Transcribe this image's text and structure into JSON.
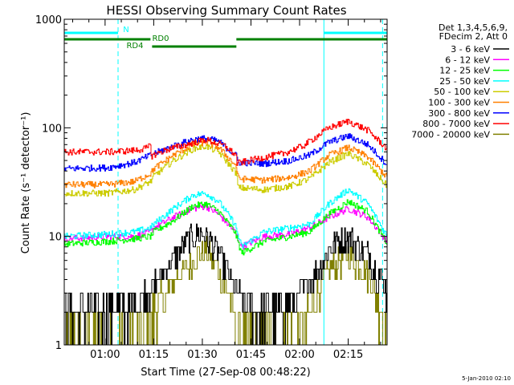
{
  "chart_data": {
    "type": "line",
    "title": "HESSI Observing Summary Count Rates",
    "xlabel": "Start Time (27-Sep-08 00:48:22)",
    "ylabel": "Count Rate (s⁻¹ detector⁻¹)",
    "yscale": "log",
    "ylim": [
      1,
      1000
    ],
    "y_ticks": [
      {
        "value": 1,
        "label": "1"
      },
      {
        "value": 10,
        "label": "10"
      },
      {
        "value": 100,
        "label": "100"
      },
      {
        "value": 1000,
        "label": "1000"
      }
    ],
    "x_range_min": [
      48.4,
      148.0
    ],
    "x_ticks": [
      {
        "value": 61,
        "label": "01:00"
      },
      {
        "value": 76,
        "label": "01:15"
      },
      {
        "value": 91,
        "label": "01:30"
      },
      {
        "value": 106,
        "label": "01:45"
      },
      {
        "value": 121,
        "label": "02:00"
      },
      {
        "value": 136,
        "label": "02:15"
      }
    ],
    "legend_header": [
      "Det 1,3,4,5,6,9,",
      "FDecim 2, Att 0"
    ],
    "legend_position": "right",
    "series": [
      {
        "name": "3 - 6 keV",
        "color": "#000000",
        "key": "b3"
      },
      {
        "name": "6 - 12 keV",
        "color": "#ff00ff",
        "key": "b6"
      },
      {
        "name": "12 - 25 keV",
        "color": "#00ff00",
        "key": "b12"
      },
      {
        "name": "25 - 50 keV",
        "color": "#00ffff",
        "key": "b25"
      },
      {
        "name": "50 - 100 keV",
        "color": "#cccc00",
        "key": "b50"
      },
      {
        "name": "100 - 300 keV",
        "color": "#ff8000",
        "key": "b100"
      },
      {
        "name": "300 - 800 keV",
        "color": "#0000ff",
        "key": "b300"
      },
      {
        "name": "800 - 7000 keV",
        "color": "#ff0000",
        "key": "b800"
      },
      {
        "name": "7000 - 20000 keV",
        "color": "#808000",
        "key": "b7000"
      }
    ],
    "flags": [
      {
        "label": "N",
        "color": "#00ffff",
        "row": 1,
        "segments": [
          [
            48.4,
            65.0
          ],
          [
            128.5,
            148.0
          ]
        ]
      },
      {
        "label": "RD0",
        "color": "#008000",
        "row": 2,
        "segments": [
          [
            48.4,
            75.0
          ],
          [
            101.5,
            148.0
          ]
        ]
      },
      {
        "label": "RD4",
        "color": "#008000",
        "row": 3,
        "segments": [
          [
            75.5,
            101.5
          ]
        ]
      }
    ],
    "night_boundaries": [
      48.4,
      65.0,
      128.5,
      146.6
    ],
    "profiles": {
      "b800": {
        "x": [
          48.4,
          62,
          70,
          74,
          75.0,
          75.2,
          80,
          86,
          92,
          98,
          101.5,
          101.6,
          108,
          116,
          122,
          130,
          136,
          142,
          148
        ],
        "y": [
          60,
          60,
          62,
          65,
          70,
          55,
          63,
          70,
          78,
          68,
          55,
          47,
          52,
          58,
          68,
          100,
          115,
          95,
          64
        ]
      },
      "b300": {
        "x": [
          48.4,
          62,
          70,
          75.0,
          76,
          82,
          88,
          92,
          96,
          101.5,
          102,
          110,
          118,
          124,
          130,
          136,
          142,
          148
        ],
        "y": [
          42,
          43,
          48,
          56,
          58,
          68,
          78,
          80,
          75,
          55,
          48,
          47,
          50,
          56,
          74,
          84,
          70,
          46
        ]
      },
      "b100": {
        "x": [
          48.4,
          62,
          70,
          75.0,
          76,
          82,
          88,
          92,
          96,
          101.5,
          102,
          110,
          118,
          124,
          130,
          136,
          142,
          148
        ],
        "y": [
          30,
          30,
          32,
          38,
          42,
          56,
          70,
          74,
          66,
          44,
          34,
          33,
          35,
          40,
          56,
          66,
          54,
          35
        ]
      },
      "b50": {
        "x": [
          48.4,
          62,
          70,
          75.0,
          76,
          82,
          88,
          92,
          96,
          101.5,
          102,
          110,
          118,
          124,
          130,
          136,
          142,
          148
        ],
        "y": [
          25,
          25,
          27,
          32,
          36,
          50,
          64,
          68,
          60,
          38,
          28,
          27,
          29,
          34,
          48,
          58,
          46,
          29
        ]
      },
      "b25": {
        "x": [
          48.4,
          62,
          70,
          75.0,
          76,
          82,
          88,
          92,
          96,
          101,
          103,
          110,
          118,
          124,
          130,
          136,
          142,
          148
        ],
        "y": [
          10,
          10.5,
          11,
          12,
          13,
          18,
          24,
          25,
          21,
          13,
          8,
          11,
          12,
          13,
          20,
          27,
          20,
          10
        ]
      },
      "b12": {
        "x": [
          48.4,
          62,
          70,
          75.0,
          76,
          82,
          88,
          92,
          96,
          101,
          103,
          110,
          118,
          124,
          130,
          136,
          142,
          148
        ],
        "y": [
          8.5,
          9,
          9.5,
          10,
          11,
          14,
          19,
          20,
          17,
          11,
          7,
          9,
          10,
          11,
          16,
          21,
          17,
          8.5
        ]
      },
      "b6": {
        "x": [
          48.4,
          62,
          70,
          75.0,
          76,
          82,
          88,
          92,
          96,
          101,
          103,
          110,
          118,
          124,
          130,
          136,
          142,
          148
        ],
        "y": [
          9.5,
          10,
          10,
          11,
          12,
          15,
          18,
          19,
          16,
          11,
          8,
          10,
          10.5,
          12,
          15,
          18,
          15,
          9
        ]
      },
      "b3": {
        "x": [
          48.4,
          60,
          68,
          74,
          80,
          86,
          90,
          92,
          96,
          100,
          103,
          108,
          115,
          120,
          126,
          132,
          136,
          142,
          146,
          148
        ],
        "y": [
          2,
          2,
          2.2,
          3,
          5,
          9,
          11,
          10,
          7,
          4,
          2.5,
          2,
          2,
          2.5,
          5,
          9,
          10,
          7,
          4,
          3
        ]
      },
      "b7000": {
        "x": [
          48.4,
          70,
          74,
          78,
          84,
          90,
          92,
          96,
          100,
          102,
          120,
          124,
          130,
          136,
          142,
          146,
          148
        ],
        "y": [
          1.0,
          1.0,
          1.5,
          2.5,
          4.5,
          7,
          7.5,
          5,
          2.5,
          1.0,
          1.0,
          2,
          5,
          7,
          4.5,
          2,
          1.0
        ]
      }
    },
    "background_annotation": "5-Jan-2010 02:10"
  }
}
